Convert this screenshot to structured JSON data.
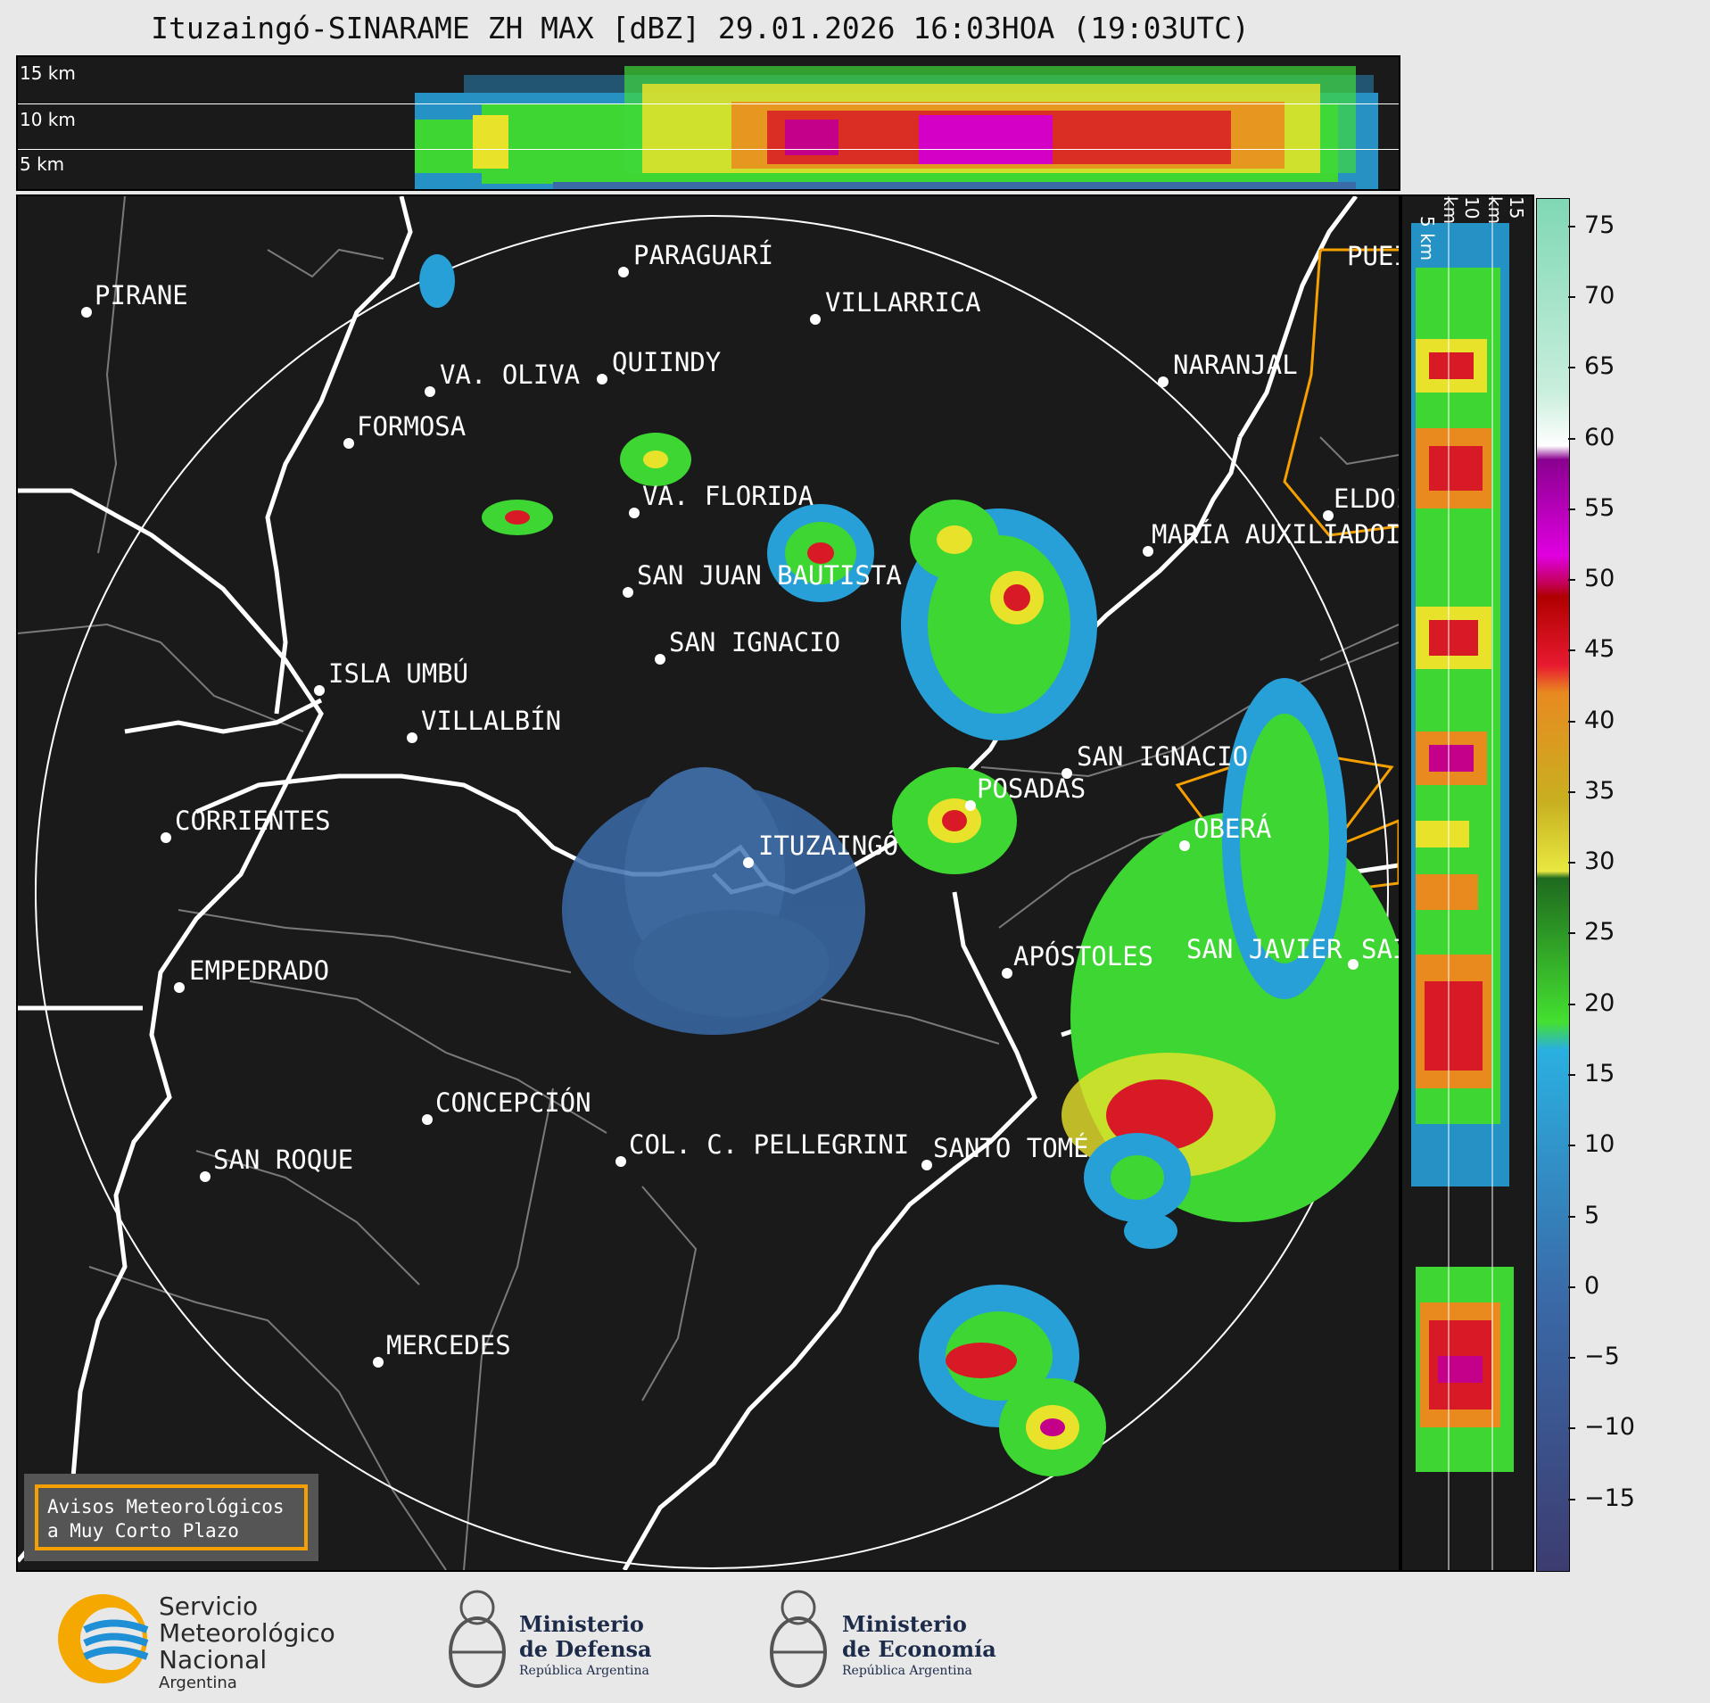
{
  "title": "Ituzaingó-SINARAME ZH MAX [dBZ] 29.01.2026 16:03HOA (19:03UTC)",
  "height_labels": {
    "top": [
      "15 km",
      "10 km",
      "5 km"
    ],
    "side": [
      "5 km",
      "10 km",
      "15 km"
    ]
  },
  "colorbar": {
    "ticks": [
      "75",
      "70",
      "65",
      "60",
      "55",
      "50",
      "45",
      "40",
      "35",
      "30",
      "25",
      "20",
      "15",
      "10",
      "5",
      "0",
      "−5",
      "−10",
      "−15"
    ],
    "range": [
      -20,
      77
    ]
  },
  "places": [
    {
      "name": "PIRANE"
    },
    {
      "name": "PARAGUARÍ"
    },
    {
      "name": "VILLARRICA"
    },
    {
      "name": "QUIINDY"
    },
    {
      "name": "VA. OLIVA"
    },
    {
      "name": "FORMOSA"
    },
    {
      "name": "NARANJAL"
    },
    {
      "name": "PUEI"
    },
    {
      "name": "VA. FLORIDA"
    },
    {
      "name": "ELDOI"
    },
    {
      "name": "MARÍA AUXILIADOI"
    },
    {
      "name": "SAN JUAN BAUTISTA"
    },
    {
      "name": "SAN IGNACIO"
    },
    {
      "name": "ISLA UMBÚ"
    },
    {
      "name": "VILLALBÍN"
    },
    {
      "name": "SAN IGNACIO"
    },
    {
      "name": "POSADAS"
    },
    {
      "name": "CORRIENTES"
    },
    {
      "name": "ITUZAINGÓ"
    },
    {
      "name": "OBERÁ"
    },
    {
      "name": "EMPEDRADO"
    },
    {
      "name": "APÓSTOLES"
    },
    {
      "name": "SAN JAVIER"
    },
    {
      "name": "SAI"
    },
    {
      "name": "CONCEPCIÓN"
    },
    {
      "name": "COL. C. PELLEGRINI"
    },
    {
      "name": "SANTO TOMÉ"
    },
    {
      "name": "SAN ROQUE"
    },
    {
      "name": "MERCEDES"
    }
  ],
  "avisos": {
    "line1": "Avisos Meteorológicos",
    "line2": "a Muy Corto Plazo"
  },
  "footer": {
    "smn": {
      "l1": "Servicio",
      "l2": "Meteorológico",
      "l3": "Nacional",
      "l4": "Argentina"
    },
    "defensa": {
      "l1": "Ministerio",
      "l2": "de Defensa",
      "l3": "República Argentina"
    },
    "economia": {
      "l1": "Ministerio",
      "l2": "de Economía",
      "l3": "República Argentina"
    }
  },
  "colors": {
    "background": "#1a1a1a",
    "border_outline": "#ffffff",
    "warning": "#f5a000",
    "smn_blue": "#1f8fd6",
    "smn_orange": "#f5a800"
  }
}
